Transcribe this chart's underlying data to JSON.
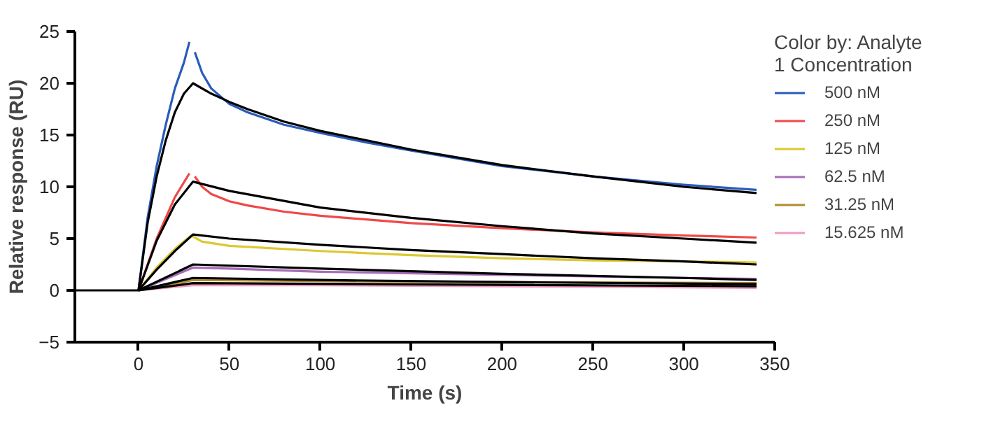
{
  "chart_data": {
    "type": "line",
    "xlabel": "Time (s)",
    "ylabel": "Relative response (RU)",
    "legend_title": "Color by: Analyte 1 Concentration",
    "legend": "right",
    "grid": false,
    "line_style": "solid",
    "xlim": [
      -35,
      350
    ],
    "ylim": [
      -5,
      25
    ],
    "xticks": [
      0,
      50,
      100,
      150,
      200,
      250,
      300,
      350
    ],
    "yticks": [
      -5,
      0,
      5,
      10,
      15,
      20,
      25
    ],
    "series": [
      {
        "name": "500 nM",
        "color": "#2a5cb8",
        "x": [
          0,
          5,
          10,
          15,
          20,
          25,
          28,
          30,
          31,
          35,
          40,
          50,
          60,
          80,
          100,
          125,
          150,
          200,
          250,
          300,
          340
        ],
        "values": [
          0,
          7,
          12,
          16,
          19.5,
          22,
          24,
          null,
          23,
          21,
          19.5,
          18,
          17.2,
          16,
          15.2,
          14.3,
          13.5,
          12,
          11,
          10.2,
          9.7
        ]
      },
      {
        "name": "250 nM",
        "color": "#f04848",
        "x": [
          0,
          10,
          20,
          28,
          30,
          31,
          35,
          40,
          50,
          60,
          80,
          100,
          150,
          200,
          250,
          300,
          340
        ],
        "values": [
          0,
          5,
          9,
          11.3,
          null,
          11,
          10,
          9.3,
          8.6,
          8.2,
          7.6,
          7.2,
          6.5,
          6,
          5.6,
          5.3,
          5.1
        ]
      },
      {
        "name": "125 nM",
        "color": "#dcc832",
        "x": [
          0,
          10,
          20,
          29,
          35,
          50,
          100,
          150,
          200,
          250,
          300,
          340
        ],
        "values": [
          0,
          2.2,
          4,
          5.3,
          4.7,
          4.3,
          3.8,
          3.4,
          3.1,
          2.9,
          2.8,
          2.7
        ]
      },
      {
        "name": "62.5 nM",
        "color": "#a86cb8",
        "x": [
          0,
          30,
          50,
          100,
          200,
          300,
          340
        ],
        "values": [
          0,
          2.2,
          2.1,
          1.8,
          1.5,
          1.2,
          1.1
        ]
      },
      {
        "name": "31.25 nM",
        "color": "#b08c2c",
        "x": [
          0,
          30,
          100,
          200,
          340
        ],
        "values": [
          0,
          1,
          0.9,
          0.8,
          0.7
        ]
      },
      {
        "name": "15.625 nM",
        "color": "#f09cc0",
        "x": [
          0,
          30,
          100,
          200,
          340
        ],
        "values": [
          0,
          0.5,
          0.5,
          0.4,
          0.25
        ]
      },
      {
        "color": "#000000",
        "x": [
          0,
          5,
          10,
          15,
          20,
          25,
          30,
          40,
          50,
          60,
          80,
          100,
          150,
          200,
          250,
          300,
          340
        ],
        "values": [
          0,
          6.5,
          11,
          14.5,
          17.2,
          19,
          20,
          19,
          18.2,
          17.5,
          16.3,
          15.4,
          13.6,
          12.1,
          11,
          10,
          9.4
        ]
      },
      {
        "color": "#000000",
        "x": [
          0,
          10,
          20,
          30,
          50,
          100,
          150,
          200,
          250,
          300,
          340
        ],
        "values": [
          0,
          4.8,
          8.3,
          10.5,
          9.6,
          8,
          7,
          6.2,
          5.5,
          5,
          4.6
        ]
      },
      {
        "color": "#000000",
        "x": [
          0,
          10,
          20,
          30,
          50,
          100,
          150,
          200,
          250,
          300,
          340
        ],
        "values": [
          0,
          2,
          3.8,
          5.4,
          5,
          4.4,
          3.9,
          3.5,
          3.1,
          2.8,
          2.5
        ]
      },
      {
        "color": "#000000",
        "x": [
          0,
          30,
          100,
          200,
          300,
          340
        ],
        "values": [
          0,
          2.5,
          2.1,
          1.6,
          1.2,
          1
        ]
      },
      {
        "color": "#000000",
        "x": [
          0,
          30,
          100,
          200,
          340
        ],
        "values": [
          0,
          1.2,
          1,
          0.8,
          0.6
        ]
      },
      {
        "color": "#000000",
        "x": [
          -35,
          0,
          30,
          340
        ],
        "values": [
          0,
          0,
          0.7,
          0.4
        ]
      }
    ]
  }
}
